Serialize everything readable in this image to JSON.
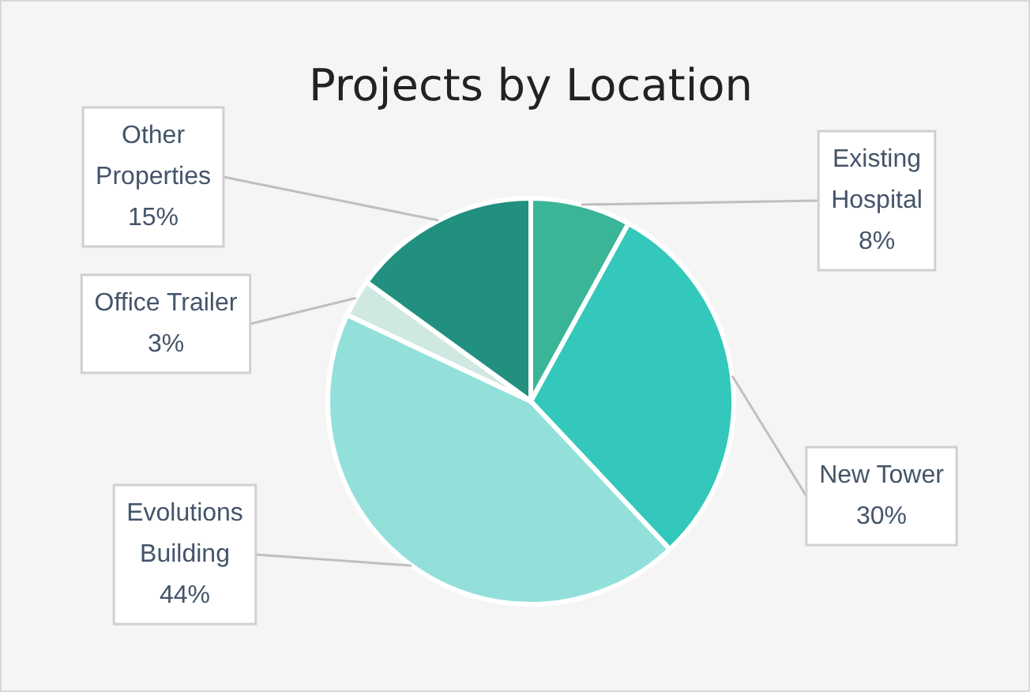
{
  "chart_data": {
    "type": "pie",
    "title": "Projects by Location",
    "categories": [
      "Existing Hospital",
      "New Tower",
      "Evolutions Building",
      "Office Trailer",
      "Other Properties"
    ],
    "values": [
      8,
      30,
      44,
      3,
      15
    ],
    "value_labels": [
      "8%",
      "30%",
      "44%",
      "3%",
      "15%"
    ],
    "colors": [
      "#3bb597",
      "#33c8bb",
      "#93e0db",
      "#d0e8e2",
      "#21907f"
    ],
    "legend": false
  }
}
